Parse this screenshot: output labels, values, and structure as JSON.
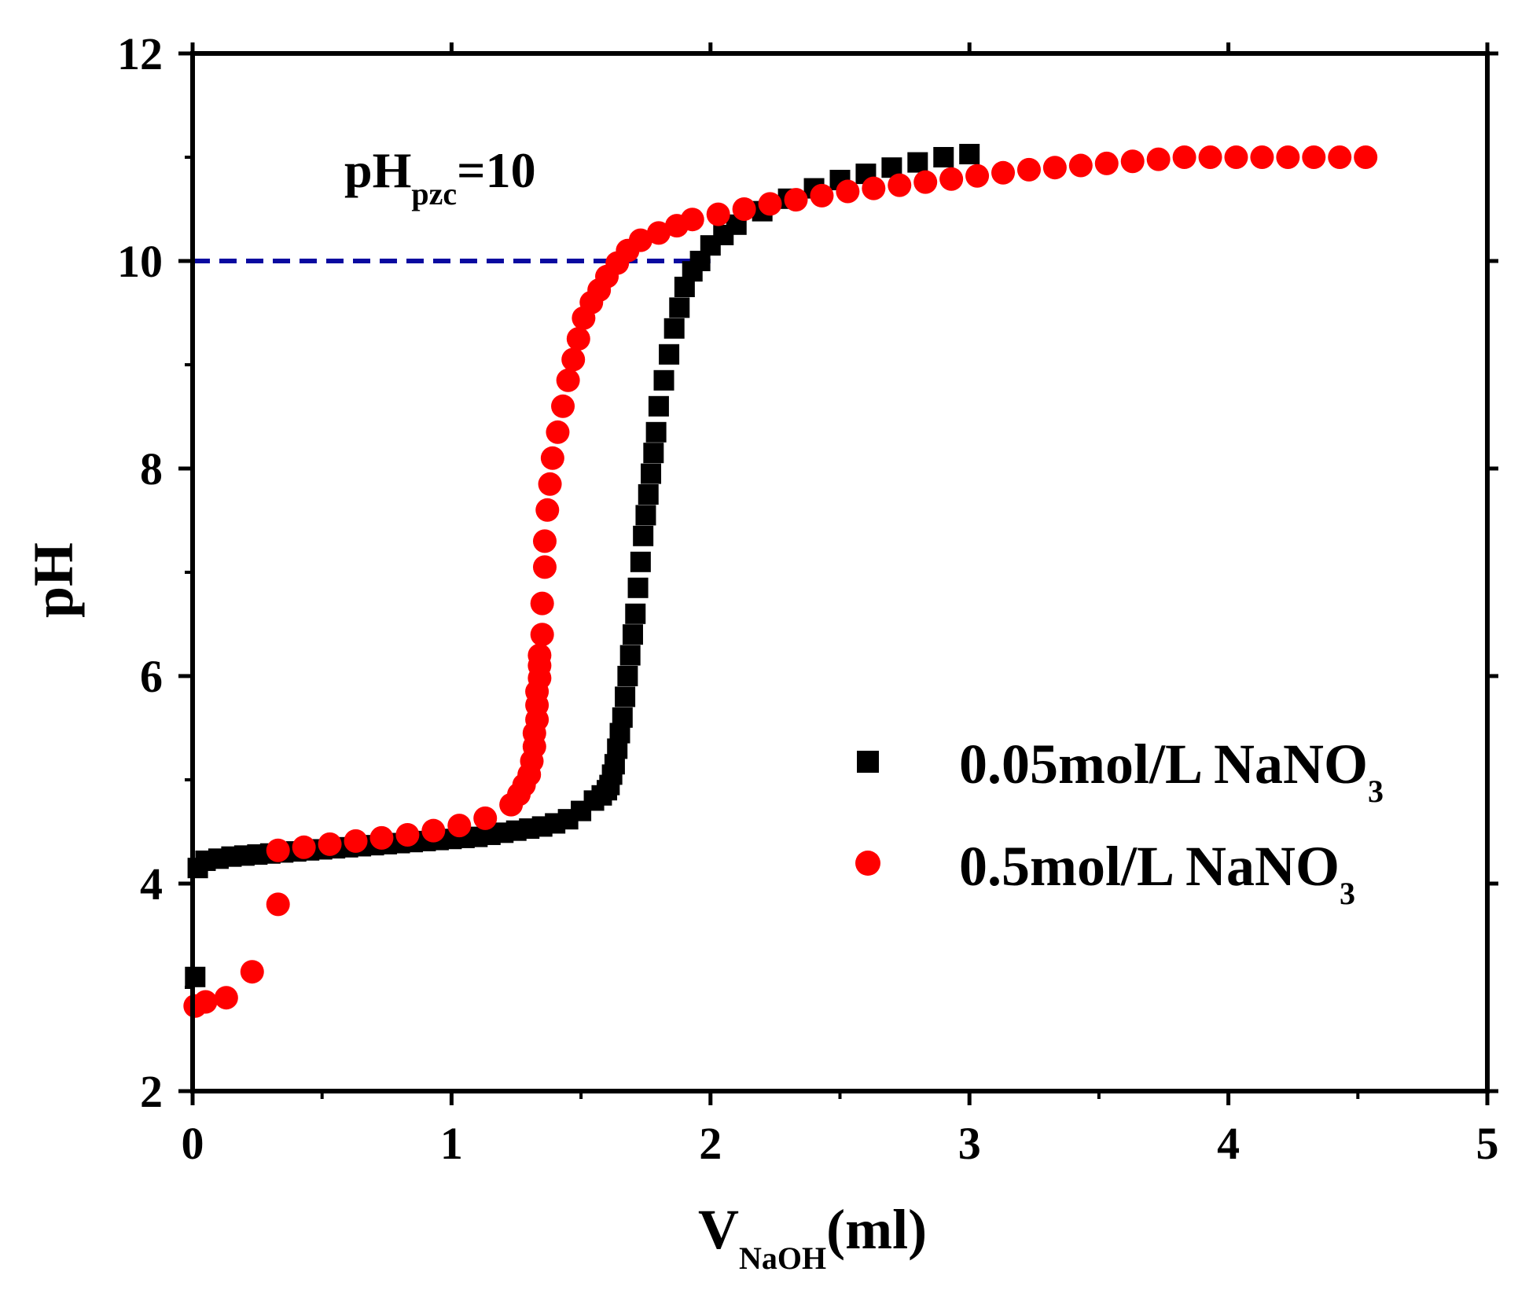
{
  "chart_data": {
    "type": "scatter",
    "title": "",
    "xlabel": {
      "main": "V",
      "sub": "NaOH",
      "suffix": "(ml)"
    },
    "ylabel": "pH",
    "xlim": [
      0,
      5
    ],
    "ylim": [
      2,
      12
    ],
    "x_ticks": [
      0,
      1,
      2,
      3,
      4,
      5
    ],
    "y_ticks": [
      2,
      4,
      6,
      8,
      10,
      12
    ],
    "x_minor_step": 0.5,
    "y_minor_step": 1,
    "grid": false,
    "legend_position": "right-center",
    "annotation": {
      "main": "pH",
      "sub": "pzc",
      "suffix": "=10"
    },
    "reference_line": {
      "y": 10,
      "x_start": 0,
      "x_end": 2.0,
      "color": "#0a0aa0",
      "style": "dashed"
    },
    "series": [
      {
        "name": "0.05mol/L NaNO",
        "name_sub": "3",
        "marker": "square",
        "color": "#000000",
        "x": [
          0.01,
          0.02,
          0.05,
          0.1,
          0.15,
          0.2,
          0.25,
          0.3,
          0.35,
          0.4,
          0.45,
          0.5,
          0.55,
          0.6,
          0.65,
          0.7,
          0.75,
          0.8,
          0.85,
          0.9,
          0.95,
          1.0,
          1.05,
          1.1,
          1.15,
          1.2,
          1.25,
          1.3,
          1.35,
          1.4,
          1.45,
          1.5,
          1.55,
          1.58,
          1.6,
          1.61,
          1.62,
          1.63,
          1.64,
          1.65,
          1.66,
          1.67,
          1.68,
          1.69,
          1.7,
          1.71,
          1.72,
          1.73,
          1.74,
          1.75,
          1.76,
          1.77,
          1.78,
          1.79,
          1.8,
          1.82,
          1.84,
          1.86,
          1.88,
          1.9,
          1.93,
          1.96,
          2.0,
          2.05,
          2.1,
          2.2,
          2.3,
          2.4,
          2.5,
          2.6,
          2.7,
          2.8,
          2.9,
          3.0
        ],
        "y": [
          3.1,
          4.15,
          4.22,
          4.24,
          4.26,
          4.27,
          4.28,
          4.29,
          4.3,
          4.31,
          4.32,
          4.33,
          4.34,
          4.35,
          4.36,
          4.37,
          4.38,
          4.39,
          4.4,
          4.41,
          4.42,
          4.43,
          4.44,
          4.45,
          4.47,
          4.49,
          4.51,
          4.53,
          4.55,
          4.58,
          4.62,
          4.7,
          4.8,
          4.85,
          4.9,
          4.95,
          5.05,
          5.15,
          5.3,
          5.45,
          5.6,
          5.8,
          6.0,
          6.2,
          6.4,
          6.6,
          6.85,
          7.1,
          7.35,
          7.55,
          7.75,
          7.95,
          8.15,
          8.35,
          8.6,
          8.85,
          9.1,
          9.35,
          9.55,
          9.75,
          9.9,
          10.0,
          10.15,
          10.25,
          10.35,
          10.48,
          10.6,
          10.7,
          10.78,
          10.84,
          10.9,
          10.95,
          11.0,
          11.03
        ]
      },
      {
        "name": "0.5mol/L NaNO",
        "name_sub": "3",
        "marker": "circle",
        "color": "#ff0000",
        "x": [
          0.01,
          0.05,
          0.13,
          0.23,
          0.33,
          0.33,
          0.43,
          0.53,
          0.63,
          0.73,
          0.83,
          0.93,
          1.03,
          1.13,
          1.23,
          1.26,
          1.28,
          1.3,
          1.31,
          1.32,
          1.32,
          1.33,
          1.33,
          1.33,
          1.34,
          1.34,
          1.34,
          1.35,
          1.35,
          1.36,
          1.36,
          1.37,
          1.38,
          1.39,
          1.41,
          1.43,
          1.45,
          1.47,
          1.49,
          1.51,
          1.54,
          1.57,
          1.6,
          1.64,
          1.68,
          1.73,
          1.8,
          1.87,
          1.93,
          2.03,
          2.13,
          2.23,
          2.33,
          2.43,
          2.53,
          2.63,
          2.73,
          2.83,
          2.93,
          3.03,
          3.13,
          3.23,
          3.33,
          3.43,
          3.53,
          3.63,
          3.73,
          3.83,
          3.93,
          4.03,
          4.13,
          4.23,
          4.33,
          4.43,
          4.53
        ],
        "y": [
          2.82,
          2.86,
          2.9,
          3.15,
          3.8,
          4.32,
          4.35,
          4.38,
          4.41,
          4.44,
          4.47,
          4.51,
          4.56,
          4.63,
          4.76,
          4.86,
          4.95,
          5.05,
          5.18,
          5.32,
          5.45,
          5.58,
          5.72,
          5.85,
          5.98,
          6.1,
          6.2,
          6.4,
          6.7,
          7.05,
          7.3,
          7.6,
          7.85,
          8.1,
          8.35,
          8.6,
          8.85,
          9.05,
          9.25,
          9.45,
          9.6,
          9.72,
          9.85,
          9.98,
          10.1,
          10.2,
          10.27,
          10.34,
          10.4,
          10.45,
          10.5,
          10.55,
          10.59,
          10.63,
          10.67,
          10.7,
          10.73,
          10.76,
          10.79,
          10.82,
          10.85,
          10.88,
          10.9,
          10.92,
          10.94,
          10.96,
          10.98,
          11.0,
          11.0,
          11.0,
          11.0,
          11.0,
          11.0,
          11.0,
          11.0
        ]
      }
    ]
  }
}
